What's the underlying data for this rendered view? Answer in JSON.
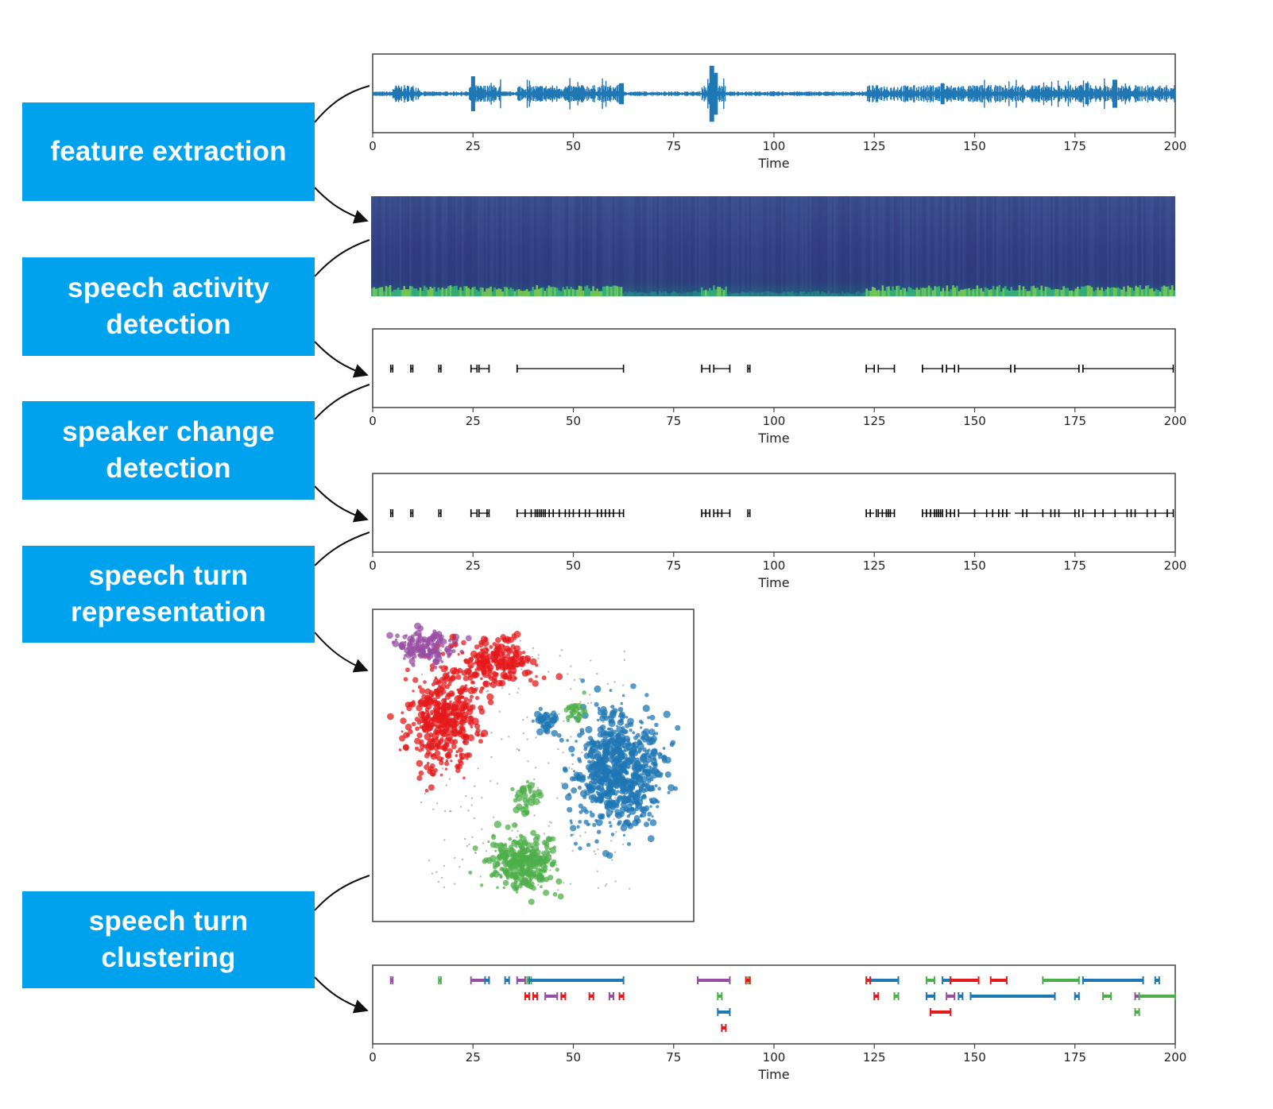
{
  "steps": [
    {
      "label": "feature extraction"
    },
    {
      "label": "speech activity\ndetection"
    },
    {
      "label": "speaker change\ndetection"
    },
    {
      "label": "speech turn\nrepresentation"
    },
    {
      "label": "speech turn\nclustering"
    }
  ],
  "colors": {
    "box": "#00a2ee",
    "waveform": "#1f77b4",
    "speakers": [
      "#1f77b4",
      "#e41a1c",
      "#4daf4a",
      "#984ea3"
    ]
  },
  "time_axis": {
    "label": "Time",
    "ticks": [
      "0",
      "25",
      "50",
      "75",
      "100",
      "125",
      "150",
      "175",
      "200"
    ],
    "range": [
      0,
      200
    ]
  },
  "chart_data": [
    {
      "type": "line",
      "description_of": "waveform",
      "xlim": [
        0,
        200
      ],
      "xlabel": "Time",
      "bursts": [
        [
          5,
          12
        ],
        [
          24,
          32
        ],
        [
          36,
          62
        ],
        [
          82,
          88
        ],
        [
          123,
          200
        ]
      ],
      "spikes": [
        [
          25,
          1.0
        ],
        [
          62,
          0.6
        ],
        [
          84.5,
          1.6
        ],
        [
          85.5,
          1.2
        ],
        [
          142,
          0.6
        ],
        [
          178,
          0.6
        ],
        [
          185,
          0.8
        ]
      ]
    },
    {
      "type": "heatmap",
      "description_of": "spectrogram",
      "xlim": [
        0,
        200
      ],
      "bright_regions": [
        [
          0,
          62
        ],
        [
          82,
          88
        ],
        [
          123,
          200
        ]
      ]
    },
    {
      "type": "line",
      "description_of": "speech activity segments",
      "xlabel": "Time",
      "xlim": [
        0,
        200
      ],
      "segments": [
        [
          4.5,
          5
        ],
        [
          9.5,
          10
        ],
        [
          16.5,
          17
        ],
        [
          24.5,
          26
        ],
        [
          26.5,
          29
        ],
        [
          36,
          62.5
        ],
        [
          82,
          84
        ],
        [
          85,
          89
        ],
        [
          93.5,
          94
        ],
        [
          123,
          125
        ],
        [
          126,
          130
        ],
        [
          137,
          142
        ],
        [
          143,
          145
        ],
        [
          146,
          159
        ],
        [
          160,
          176
        ],
        [
          177,
          199.5
        ]
      ]
    },
    {
      "type": "line",
      "description_of": "speaker change points",
      "xlabel": "Time",
      "xlim": [
        0,
        200
      ],
      "changes": [
        4.5,
        5,
        9.5,
        10,
        16.5,
        17,
        24.5,
        26,
        26.5,
        28.5,
        29,
        36,
        38,
        39.5,
        40.5,
        41,
        41.5,
        42,
        42.5,
        43,
        44,
        45,
        46.5,
        48,
        49,
        50,
        51.5,
        53,
        54,
        56,
        57,
        58,
        59,
        60,
        61.5,
        62.5,
        82,
        83,
        84,
        85,
        86,
        87,
        89,
        93.5,
        94,
        123,
        124,
        125.5,
        126,
        127,
        128,
        128.5,
        129,
        130,
        137,
        138,
        139,
        140,
        140.5,
        141,
        141.5,
        142,
        143,
        144,
        145,
        146,
        150,
        153,
        154.5,
        156,
        157,
        158,
        162,
        163,
        167,
        169,
        170,
        171,
        175,
        176,
        177,
        180,
        182,
        185,
        188,
        189,
        190,
        193,
        195,
        198,
        199.5
      ]
    },
    {
      "type": "scatter",
      "description_of": "embedding clusters",
      "clusters": [
        {
          "color": "#e41a1c",
          "center": [
            0.22,
            0.35
          ],
          "spread": [
            0.1,
            0.15
          ],
          "count": 450
        },
        {
          "color": "#984ea3",
          "center": [
            0.17,
            0.12
          ],
          "spread": [
            0.08,
            0.05
          ],
          "count": 140
        },
        {
          "color": "#e41a1c",
          "center": [
            0.38,
            0.17
          ],
          "spread": [
            0.11,
            0.07
          ],
          "count": 230
        },
        {
          "color": "#1f77b4",
          "center": [
            0.76,
            0.52
          ],
          "spread": [
            0.12,
            0.18
          ],
          "count": 780
        },
        {
          "color": "#4daf4a",
          "center": [
            0.47,
            0.81
          ],
          "spread": [
            0.09,
            0.08
          ],
          "count": 300
        },
        {
          "color": "#4daf4a",
          "center": [
            0.48,
            0.6
          ],
          "spread": [
            0.03,
            0.05
          ],
          "count": 40
        },
        {
          "color": "#4daf4a",
          "center": [
            0.63,
            0.33
          ],
          "spread": [
            0.03,
            0.03
          ],
          "count": 30
        },
        {
          "color": "#1f77b4",
          "center": [
            0.54,
            0.36
          ],
          "spread": [
            0.03,
            0.03
          ],
          "count": 40
        }
      ]
    },
    {
      "type": "line",
      "description_of": "speaker-labelled speech turns",
      "xlabel": "Time",
      "xlim": [
        0,
        200
      ],
      "series": [
        {
          "color": "#984ea3",
          "segments": [
            [
              4.5,
              5,
              0
            ],
            [
              24.5,
              29,
              0
            ],
            [
              36,
              38,
              0
            ],
            [
              43,
              46,
              1
            ],
            [
              59,
              60,
              1
            ],
            [
              81,
              89,
              0
            ],
            [
              143,
              145,
              1
            ],
            [
              190,
              191,
              1
            ]
          ]
        },
        {
          "color": "#4daf4a",
          "segments": [
            [
              16.5,
              17,
              0
            ],
            [
              38.5,
              39.5,
              0
            ],
            [
              86,
              87,
              1
            ],
            [
              93.5,
              94,
              0
            ],
            [
              130,
              131,
              1
            ],
            [
              138,
              140,
              0
            ],
            [
              167,
              176,
              0
            ],
            [
              182,
              184,
              1
            ],
            [
              190,
              191,
              2
            ],
            [
              191,
              200,
              1
            ]
          ]
        },
        {
          "color": "#1f77b4",
          "segments": [
            [
              28,
              29,
              0
            ],
            [
              33,
              34,
              0
            ],
            [
              39,
              62.5,
              0
            ],
            [
              86,
              89,
              2
            ],
            [
              124,
              131,
              0
            ],
            [
              138,
              140,
              1
            ],
            [
              142,
              144,
              0
            ],
            [
              146,
              147,
              1
            ],
            [
              149,
              170,
              1
            ],
            [
              175,
              176,
              1
            ],
            [
              177,
              192,
              0
            ],
            [
              195,
              196,
              0
            ]
          ]
        },
        {
          "color": "#e41a1c",
          "segments": [
            [
              38,
              39,
              1
            ],
            [
              40,
              41,
              1
            ],
            [
              47,
              48,
              1
            ],
            [
              54,
              55,
              1
            ],
            [
              61.5,
              62.5,
              1
            ],
            [
              87,
              88,
              3
            ],
            [
              93,
              94,
              0
            ],
            [
              123,
              124,
              0
            ],
            [
              125,
              126,
              1
            ],
            [
              139,
              144,
              2
            ],
            [
              144,
              151,
              0
            ],
            [
              154,
              158,
              0
            ]
          ]
        }
      ]
    }
  ]
}
